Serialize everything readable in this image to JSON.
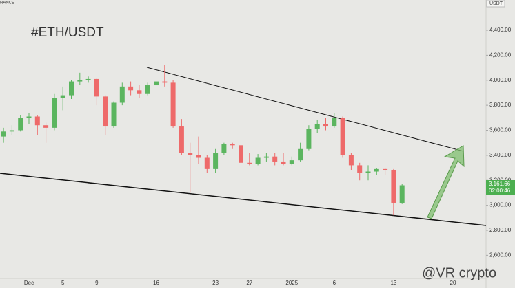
{
  "chart_data": {
    "type": "candlestick",
    "exchange": "NANCE",
    "title": "#ETH/USDT",
    "currency": "USDT",
    "watermark": "@VR crypto",
    "last_price": "3,161.66",
    "countdown": "02:00:46",
    "categories": [
      null,
      null,
      null,
      "Dec",
      null,
      null,
      null,
      "5",
      null,
      null,
      null,
      "9",
      null,
      null,
      null,
      null,
      null,
      null,
      "16",
      null,
      null,
      null,
      null,
      null,
      null,
      "23",
      null,
      null,
      null,
      "27",
      null,
      null,
      null,
      null,
      "2025",
      null,
      null,
      null,
      null,
      "6",
      null,
      null,
      null,
      null,
      null,
      null,
      "13",
      null,
      null,
      null,
      null,
      null,
      null,
      "20",
      null,
      null
    ],
    "open": [
      3550,
      3590,
      3600,
      3700,
      3710,
      3640,
      3620,
      3860,
      3880,
      3990,
      4000,
      4010,
      3870,
      3630,
      3820,
      3950,
      3920,
      3890,
      3960,
      3990,
      3980,
      3630,
      3420,
      3400,
      3380,
      3290,
      3420,
      3490,
      3480,
      3340,
      3330,
      3380,
      3390,
      3350,
      3330,
      3360,
      3450,
      3610,
      3650,
      3630,
      3700,
      3400,
      3320,
      3260,
      3270,
      3290,
      3280,
      3020,
      null,
      null,
      null,
      null,
      null,
      null,
      null,
      null
    ],
    "high": [
      3620,
      3640,
      3720,
      3740,
      3720,
      3660,
      3890,
      3950,
      4000,
      4060,
      4030,
      4020,
      3880,
      3830,
      3980,
      3990,
      3960,
      3980,
      4100,
      4120,
      4000,
      3690,
      3500,
      3550,
      3400,
      3450,
      3500,
      3500,
      3490,
      3420,
      3410,
      3420,
      3420,
      3420,
      3390,
      3500,
      3640,
      3680,
      3700,
      3740,
      3710,
      3420,
      3340,
      3320,
      3300,
      3300,
      3290,
      3170,
      null,
      null,
      null,
      null,
      null,
      null,
      null,
      null
    ],
    "low": [
      3500,
      3560,
      3590,
      3650,
      3560,
      3500,
      3600,
      3760,
      3850,
      3960,
      3980,
      3800,
      3560,
      3620,
      3800,
      3880,
      3860,
      3880,
      3870,
      3950,
      3620,
      3400,
      3100,
      3330,
      3260,
      3260,
      3400,
      3450,
      3310,
      3320,
      3320,
      3350,
      3320,
      3320,
      3320,
      3350,
      3440,
      3580,
      3600,
      3620,
      3380,
      3280,
      3200,
      3200,
      3240,
      3240,
      2920,
      3010,
      null,
      null,
      null,
      null,
      null,
      null,
      null,
      null
    ],
    "close": [
      3590,
      3600,
      3700,
      3710,
      3640,
      3620,
      3860,
      3880,
      3990,
      4000,
      4010,
      3870,
      3630,
      3820,
      3950,
      3920,
      3890,
      3960,
      3990,
      3980,
      3630,
      3420,
      3400,
      3380,
      3290,
      3420,
      3490,
      3480,
      3340,
      3330,
      3380,
      3390,
      3350,
      3330,
      3360,
      3450,
      3610,
      3650,
      3630,
      3700,
      3400,
      3320,
      3260,
      3270,
      3290,
      3280,
      3020,
      3160,
      null,
      null,
      null,
      null,
      null,
      null,
      null,
      null
    ],
    "up_color": "#5bb55f",
    "down_color": "#ee6a6a",
    "ylim": [
      2415,
      4642
    ],
    "yticks": [
      {
        "value": 2600,
        "label": "2,600.00"
      },
      {
        "value": 2800,
        "label": "2,800.00"
      },
      {
        "value": 3000,
        "label": "3,000.00"
      },
      {
        "value": 3200,
        "label": "3,200.00"
      },
      {
        "value": 3400,
        "label": "3,400.00"
      },
      {
        "value": 3600,
        "label": "3,600.00"
      },
      {
        "value": 3800,
        "label": "3,800.00"
      },
      {
        "value": 4000,
        "label": "4,000.00"
      },
      {
        "value": 4200,
        "label": "4,200.00"
      },
      {
        "value": 4400,
        "label": "4,400.00"
      }
    ]
  }
}
